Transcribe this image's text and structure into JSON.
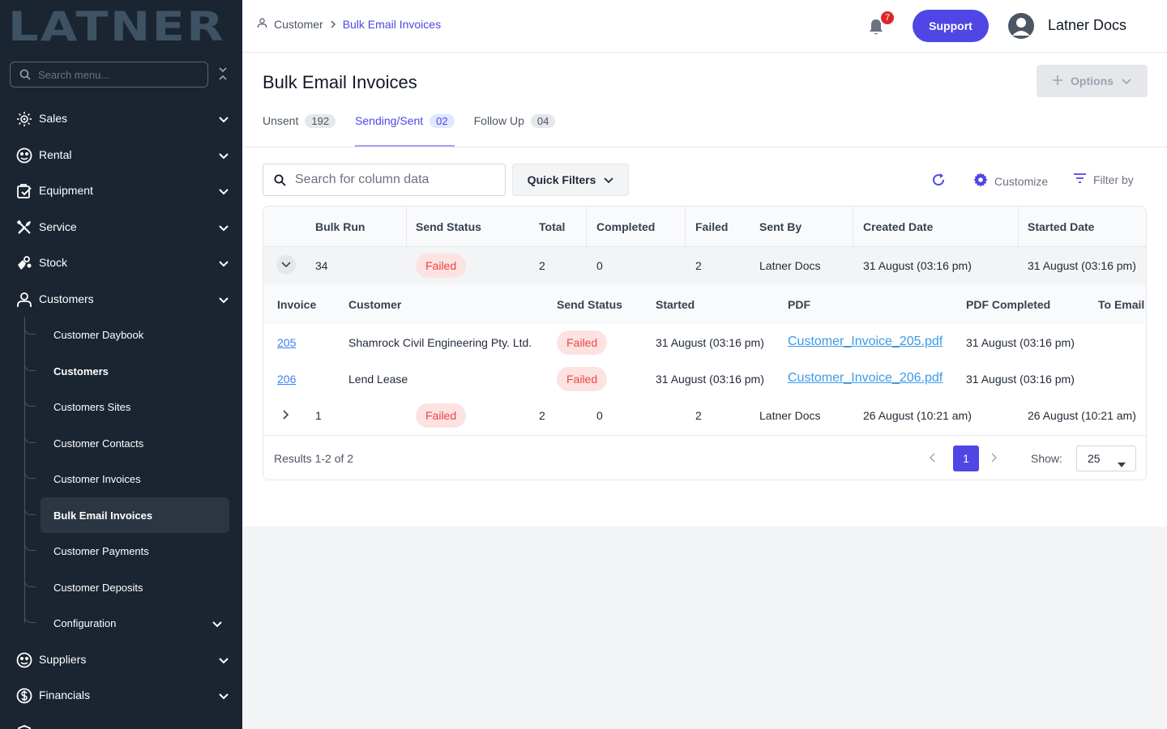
{
  "brand": {
    "logo_text": "LATNER"
  },
  "sidebar": {
    "search_placeholder": "Search menu...",
    "items": [
      {
        "label": "Sales",
        "icon": "sales-icon"
      },
      {
        "label": "Rental",
        "icon": "rental-icon"
      },
      {
        "label": "Equipment",
        "icon": "equipment-icon"
      },
      {
        "label": "Service",
        "icon": "service-icon"
      },
      {
        "label": "Stock",
        "icon": "stock-icon"
      },
      {
        "label": "Customers",
        "icon": "user-icon"
      }
    ],
    "sub_items": [
      {
        "label": "Customer Daybook"
      },
      {
        "label": "Customers"
      },
      {
        "label": "Customers Sites"
      },
      {
        "label": "Customer Contacts"
      },
      {
        "label": "Customer Invoices"
      },
      {
        "label": "Bulk Email Invoices"
      },
      {
        "label": "Customer Payments"
      },
      {
        "label": "Customer Deposits"
      },
      {
        "label": "Configuration"
      }
    ],
    "bottom_items": [
      {
        "label": "Suppliers",
        "icon": "suppliers-icon"
      },
      {
        "label": "Financials",
        "icon": "financials-icon"
      }
    ]
  },
  "header": {
    "breadcrumb": [
      "Customer",
      "Bulk Email Invoices"
    ],
    "notification_count": "7",
    "support_label": "Support",
    "user_name": "Latner Docs"
  },
  "page": {
    "title": "Bulk Email Invoices",
    "options_label": "Options",
    "tabs": [
      {
        "label": "Unsent",
        "count": "192"
      },
      {
        "label": "Sending/Sent",
        "count": "02"
      },
      {
        "label": "Follow Up",
        "count": "04"
      }
    ],
    "search_placeholder": "Search for column data",
    "quick_filters_label": "Quick Filters",
    "customize_label": "Customize",
    "filter_by_label": "Filter by"
  },
  "table": {
    "columns": [
      "Bulk Run",
      "Send Status",
      "Total",
      "Completed",
      "Failed",
      "Sent By",
      "Created Date",
      "Started Date"
    ],
    "rows": [
      {
        "bulk_run": "34",
        "status": "Failed",
        "total": "2",
        "completed": "0",
        "failed": "2",
        "sent_by": "Latner Docs",
        "created": "31 August (03:16 pm)",
        "started": "31 August (03:16 pm)",
        "expanded": true
      },
      {
        "bulk_run": "1",
        "status": "Failed",
        "total": "2",
        "completed": "0",
        "failed": "2",
        "sent_by": "Latner Docs",
        "created": "26 August (10:21 am)",
        "started": "26 August (10:21 am)",
        "expanded": false
      }
    ],
    "sub_columns": [
      "Invoice",
      "Customer",
      "Send Status",
      "Started",
      "PDF",
      "PDF Completed",
      "To Email"
    ],
    "sub_rows": [
      {
        "invoice": "205",
        "customer": "Shamrock Civil Engineering Pty. Ltd.",
        "status": "Failed",
        "started": "31 August (03:16 pm)",
        "pdf": "Customer_Invoice_205.pdf",
        "pdf_completed": "31 August (03:16 pm)",
        "to_email": ""
      },
      {
        "invoice": "206",
        "customer": "Lend Lease",
        "status": "Failed",
        "started": "31 August (03:16 pm)",
        "pdf": "Customer_Invoice_206.pdf",
        "pdf_completed": "31 August (03:16 pm)",
        "to_email": ""
      }
    ],
    "results_text": "Results 1-2 of 2",
    "current_page": "1",
    "show_label": "Show:",
    "page_size": "25"
  },
  "colors": {
    "accent": "#4f46e5",
    "sidebar_bg": "#1b2431",
    "failed_bg": "#fde2e2",
    "failed_text": "#ef4444"
  }
}
